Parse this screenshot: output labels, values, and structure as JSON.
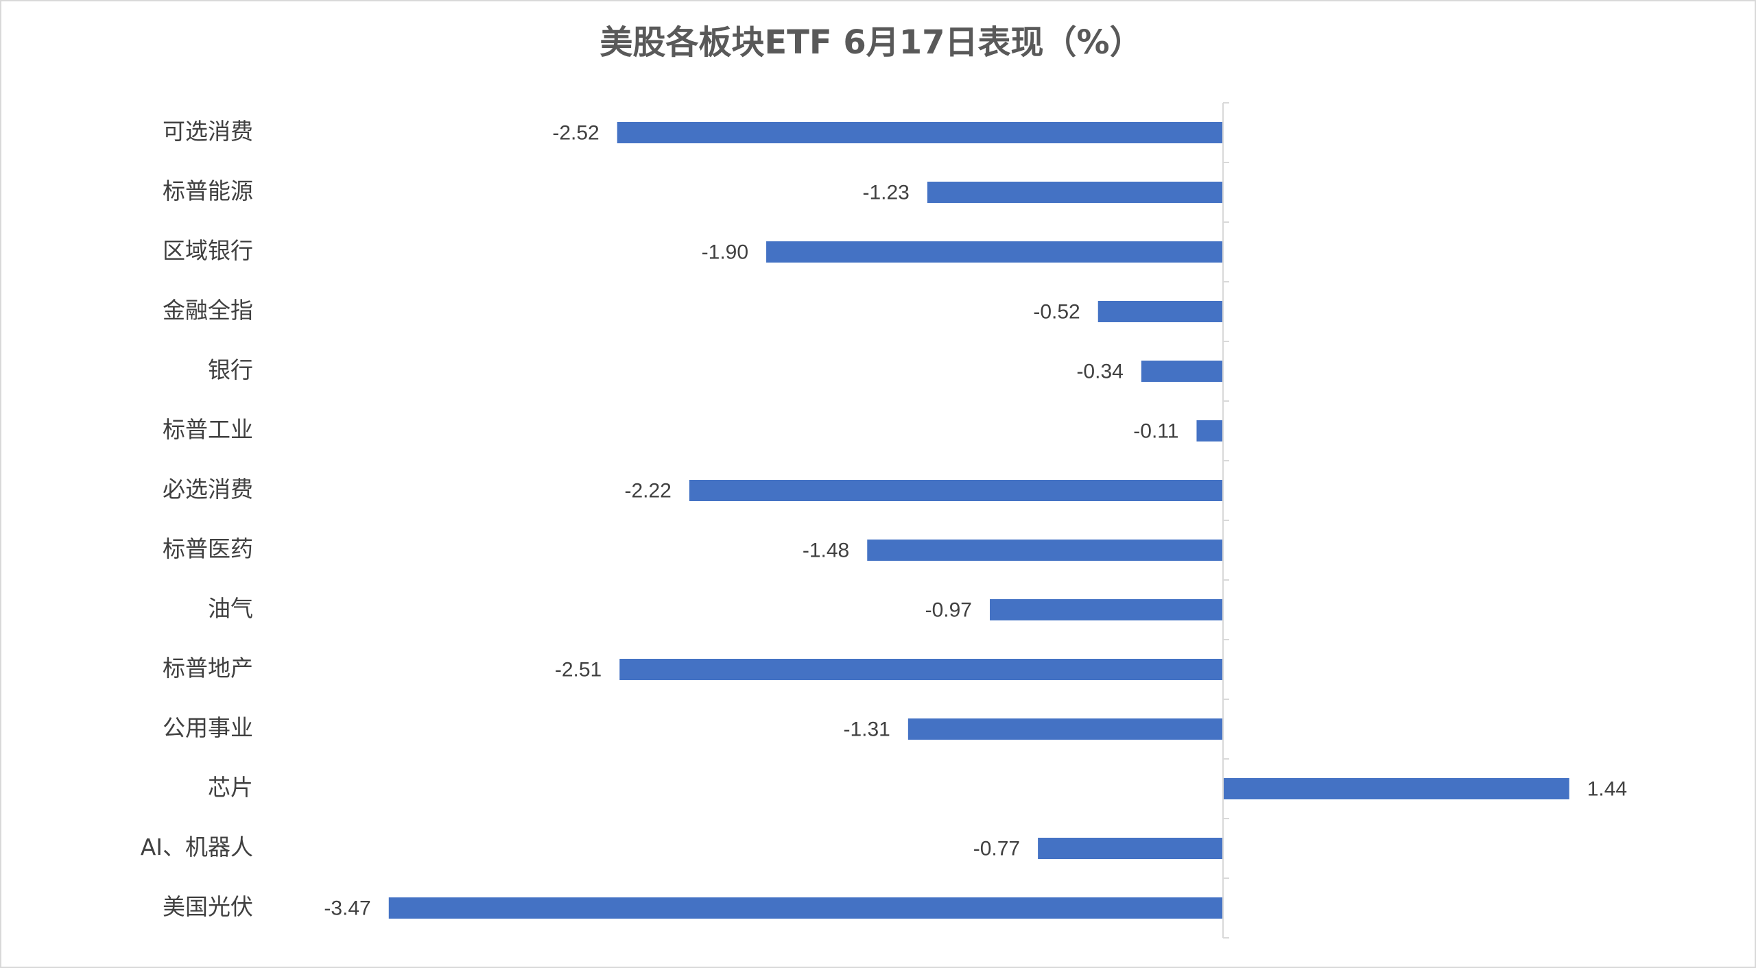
{
  "chart_data": {
    "type": "bar",
    "orientation": "horizontal",
    "title": "美股各板块ETF  6月17日表现（%）",
    "categories": [
      "可选消费",
      "标普能源",
      "区域银行",
      "金融全指",
      "银行",
      "标普工业",
      "必选消费",
      "标普医药",
      "油气",
      "标普地产",
      "公用事业",
      "芯片",
      "AI、机器人",
      "美国光伏"
    ],
    "values": [
      -2.52,
      -1.23,
      -1.9,
      -0.52,
      -0.34,
      -0.11,
      -2.22,
      -1.48,
      -0.97,
      -2.51,
      -1.31,
      1.44,
      -0.77,
      -3.47
    ],
    "value_labels": [
      "-2.52",
      "-1.23",
      "-1.90",
      "-0.52",
      "-0.34",
      "-0.11",
      "-2.22",
      "-1.48",
      "-0.97",
      "-2.51",
      "-1.31",
      "1.44",
      "-0.77",
      "-3.47"
    ],
    "color": "#4472c4",
    "xlim": [
      -4,
      2
    ]
  }
}
